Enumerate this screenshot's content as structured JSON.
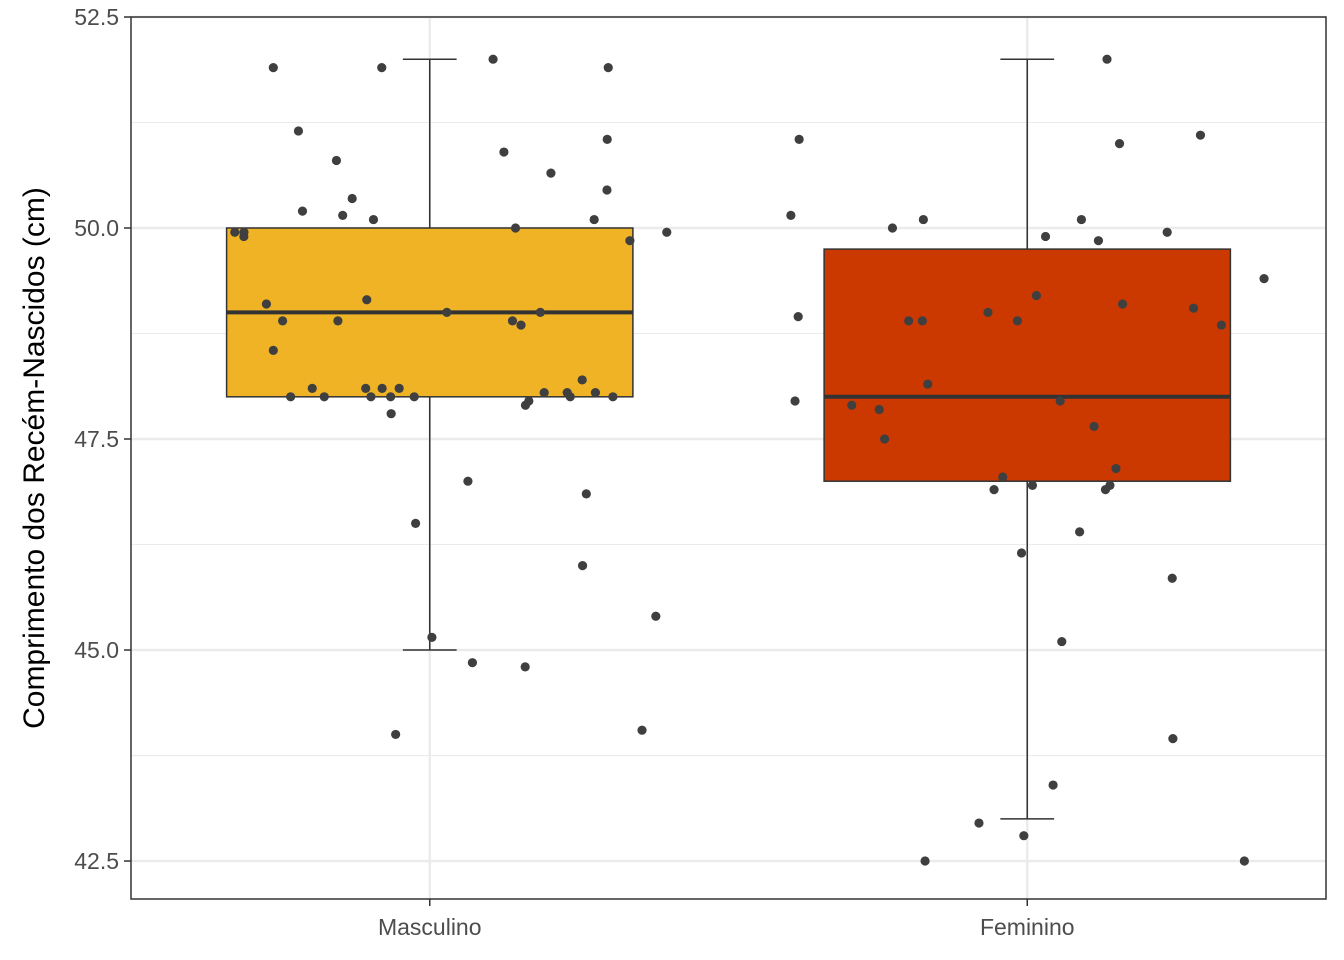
{
  "chart_data": {
    "type": "box",
    "title": "",
    "xlabel": "",
    "ylabel": "Comprimento dos Recém-Nascidos (cm)",
    "ylim": [
      42.05,
      52.5
    ],
    "y_ticks": [
      "42.5",
      "45.0",
      "47.5",
      "50.0",
      "52.5"
    ],
    "y_tick_values": [
      42.5,
      45.0,
      47.5,
      50.0,
      52.5
    ],
    "grid": true,
    "legend": "none",
    "categories": [
      "Masculino",
      "Feminino"
    ],
    "boxes": [
      {
        "category": "Masculino",
        "color": "#EFB325",
        "whisker_low": 45.0,
        "q1": 48.0,
        "median": 49.0,
        "q3": 50.0,
        "whisker_high": 52.0
      },
      {
        "category": "Feminino",
        "color": "#CC3900",
        "whisker_low": 43.0,
        "q1": 47.0,
        "median": 48.0,
        "q3": 49.75,
        "whisker_high": 52.0
      }
    ],
    "points": [
      {
        "category": "Masculino",
        "values": [
          50.9,
          50.8,
          52.0,
          49.95,
          50.0,
          48.9,
          48.55,
          48.0,
          47.95,
          46.85,
          48.05,
          50.35,
          48.0,
          48.9,
          47.0,
          50.2,
          48.0,
          48.05,
          51.05,
          50.1,
          49.95,
          46.5,
          49.0,
          48.1,
          48.0,
          49.15,
          49.85,
          50.45,
          47.8,
          44.0,
          46.0,
          51.9,
          49.1,
          50.15,
          48.0,
          45.15,
          45.4,
          48.0,
          50.65,
          51.15,
          48.1,
          51.9,
          48.2,
          48.9,
          49.0,
          48.05,
          47.9,
          49.9,
          44.85,
          49.95,
          48.85,
          51.9,
          44.8,
          48.1,
          50.1,
          48.1,
          48.0,
          44.05
        ]
      },
      {
        "category": "Feminino",
        "values": [
          46.9,
          51.05,
          48.9,
          47.9,
          52.0,
          50.15,
          42.5,
          48.9,
          49.0,
          50.0,
          45.85,
          48.9,
          49.9,
          49.05,
          50.1,
          49.1,
          48.95,
          43.4,
          47.05,
          46.95,
          46.9,
          48.15,
          46.15,
          42.5,
          47.5,
          49.2,
          48.85,
          46.4,
          47.95,
          47.65,
          49.85,
          42.95,
          43.95,
          47.15,
          50.1,
          49.95,
          49.4,
          42.8,
          47.85,
          47.95,
          46.95,
          51.1,
          45.1,
          51.0
        ]
      }
    ]
  }
}
